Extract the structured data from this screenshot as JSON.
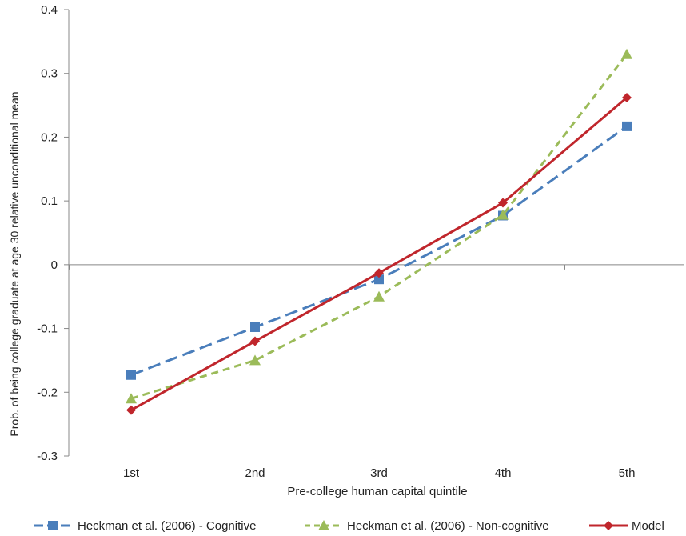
{
  "chart_data": {
    "type": "line",
    "title": "",
    "xlabel": "Pre-college human capital quintile",
    "ylabel": "Prob. of being college graduate at age 30 relative unconditional mean",
    "categories": [
      "1st",
      "2nd",
      "3rd",
      "4th",
      "5th"
    ],
    "ylim": [
      -0.3,
      0.4
    ],
    "yticks": [
      "0.4",
      "0.3",
      "0.2",
      "0.1",
      "0",
      "-0.1",
      "-0.2",
      "-0.3"
    ],
    "ytick_values": [
      0.4,
      0.3,
      0.2,
      0.1,
      0,
      -0.1,
      -0.2,
      -0.3
    ],
    "grid": false,
    "legend_position": "bottom",
    "series": [
      {
        "name": "Heckman et al. (2006) - Cognitive",
        "values": [
          -0.173,
          -0.098,
          -0.023,
          0.077,
          0.217
        ],
        "color": "#4a7ebb",
        "line_style": "long-dash",
        "marker": "square"
      },
      {
        "name": "Heckman et al. (2006) - Non-cognitive",
        "values": [
          -0.21,
          -0.15,
          -0.05,
          0.078,
          0.33
        ],
        "color": "#9bbb59",
        "line_style": "dash",
        "marker": "triangle"
      },
      {
        "name": "Model",
        "values": [
          -0.228,
          -0.12,
          -0.013,
          0.097,
          0.262
        ],
        "color": "#c0262c",
        "line_style": "solid",
        "marker": "diamond"
      }
    ]
  }
}
